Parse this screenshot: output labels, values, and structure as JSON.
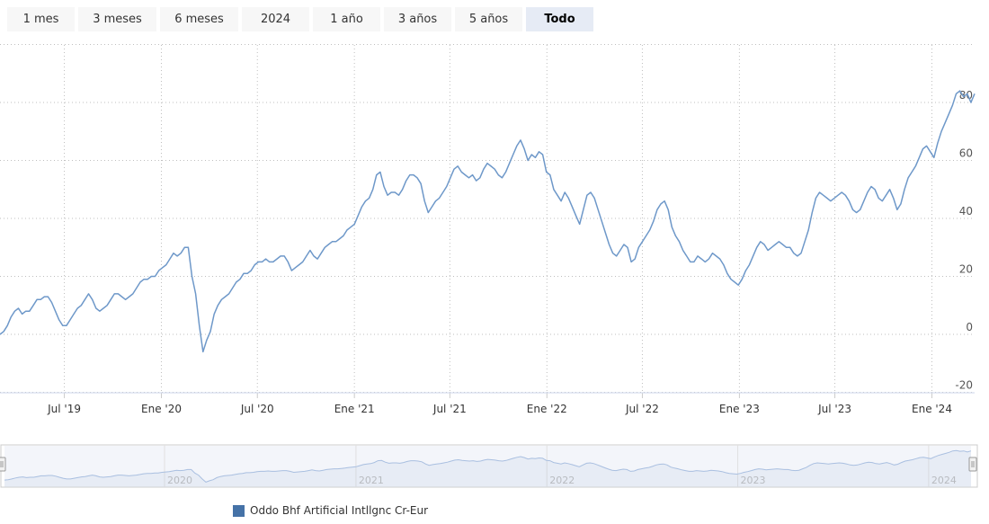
{
  "range_selector": {
    "buttons": [
      "1 mes",
      "3 meses",
      "6 meses",
      "2024",
      "1 año",
      "3 años",
      "5 años",
      "Todo"
    ],
    "active": "Todo"
  },
  "colors": {
    "series": "#6e98c9",
    "navigator_line": "#a9bfe0",
    "legend": "#4572a7",
    "grid": "#bfbfbf"
  },
  "chart_data": {
    "type": "line",
    "title": "",
    "xlabel": "",
    "ylabel": "",
    "y_ticks": [
      -20,
      0,
      20,
      40,
      60,
      80
    ],
    "ylim": [
      -20,
      100
    ],
    "xlim": [
      "2019-03-01",
      "2024-03-22"
    ],
    "x_ticks": [
      {
        "date": "2019-07-01",
        "label": "Jul '19"
      },
      {
        "date": "2020-01-01",
        "label": "Ene '20"
      },
      {
        "date": "2020-07-01",
        "label": "Jul '20"
      },
      {
        "date": "2021-01-01",
        "label": "Ene '21"
      },
      {
        "date": "2021-07-01",
        "label": "Jul '21"
      },
      {
        "date": "2022-01-01",
        "label": "Ene '22"
      },
      {
        "date": "2022-07-01",
        "label": "Jul '22"
      },
      {
        "date": "2023-01-01",
        "label": "Ene '23"
      },
      {
        "date": "2023-07-01",
        "label": "Jul '23"
      },
      {
        "date": "2024-01-01",
        "label": "Ene '24"
      }
    ],
    "grid": true,
    "legend_position": "bottom",
    "series": [
      {
        "name": "Oddo Bhf Artificial Intllgnc Cr-Eur",
        "points": [
          [
            "2019-03-01",
            0
          ],
          [
            "2019-03-08",
            1
          ],
          [
            "2019-03-15",
            3
          ],
          [
            "2019-03-22",
            6
          ],
          [
            "2019-03-29",
            8
          ],
          [
            "2019-04-05",
            9
          ],
          [
            "2019-04-12",
            7
          ],
          [
            "2019-04-19",
            8
          ],
          [
            "2019-04-26",
            8
          ],
          [
            "2019-05-03",
            10
          ],
          [
            "2019-05-10",
            12
          ],
          [
            "2019-05-17",
            12
          ],
          [
            "2019-05-24",
            13
          ],
          [
            "2019-05-31",
            13
          ],
          [
            "2019-06-07",
            11
          ],
          [
            "2019-06-14",
            8
          ],
          [
            "2019-06-21",
            5
          ],
          [
            "2019-06-28",
            3
          ],
          [
            "2019-07-05",
            3
          ],
          [
            "2019-07-12",
            5
          ],
          [
            "2019-07-19",
            7
          ],
          [
            "2019-07-26",
            9
          ],
          [
            "2019-08-02",
            10
          ],
          [
            "2019-08-09",
            12
          ],
          [
            "2019-08-16",
            14
          ],
          [
            "2019-08-23",
            12
          ],
          [
            "2019-08-30",
            9
          ],
          [
            "2019-09-06",
            8
          ],
          [
            "2019-09-13",
            9
          ],
          [
            "2019-09-20",
            10
          ],
          [
            "2019-09-27",
            12
          ],
          [
            "2019-10-04",
            14
          ],
          [
            "2019-10-11",
            14
          ],
          [
            "2019-10-18",
            13
          ],
          [
            "2019-10-25",
            12
          ],
          [
            "2019-11-01",
            13
          ],
          [
            "2019-11-08",
            14
          ],
          [
            "2019-11-15",
            16
          ],
          [
            "2019-11-22",
            18
          ],
          [
            "2019-11-29",
            19
          ],
          [
            "2019-12-06",
            19
          ],
          [
            "2019-12-13",
            20
          ],
          [
            "2019-12-20",
            20
          ],
          [
            "2019-12-27",
            22
          ],
          [
            "2020-01-03",
            23
          ],
          [
            "2020-01-10",
            24
          ],
          [
            "2020-01-17",
            26
          ],
          [
            "2020-01-24",
            28
          ],
          [
            "2020-01-31",
            27
          ],
          [
            "2020-02-07",
            28
          ],
          [
            "2020-02-14",
            30
          ],
          [
            "2020-02-21",
            30
          ],
          [
            "2020-02-28",
            20
          ],
          [
            "2020-03-06",
            14
          ],
          [
            "2020-03-13",
            3
          ],
          [
            "2020-03-20",
            -6
          ],
          [
            "2020-03-27",
            -2
          ],
          [
            "2020-04-03",
            1
          ],
          [
            "2020-04-10",
            7
          ],
          [
            "2020-04-17",
            10
          ],
          [
            "2020-04-24",
            12
          ],
          [
            "2020-05-01",
            13
          ],
          [
            "2020-05-08",
            14
          ],
          [
            "2020-05-15",
            16
          ],
          [
            "2020-05-22",
            18
          ],
          [
            "2020-05-29",
            19
          ],
          [
            "2020-06-05",
            21
          ],
          [
            "2020-06-12",
            21
          ],
          [
            "2020-06-19",
            22
          ],
          [
            "2020-06-26",
            24
          ],
          [
            "2020-07-03",
            25
          ],
          [
            "2020-07-10",
            25
          ],
          [
            "2020-07-17",
            26
          ],
          [
            "2020-07-24",
            25
          ],
          [
            "2020-07-31",
            25
          ],
          [
            "2020-08-07",
            26
          ],
          [
            "2020-08-14",
            27
          ],
          [
            "2020-08-21",
            27
          ],
          [
            "2020-08-28",
            25
          ],
          [
            "2020-09-04",
            22
          ],
          [
            "2020-09-11",
            23
          ],
          [
            "2020-09-18",
            24
          ],
          [
            "2020-09-25",
            25
          ],
          [
            "2020-10-02",
            27
          ],
          [
            "2020-10-09",
            29
          ],
          [
            "2020-10-16",
            27
          ],
          [
            "2020-10-23",
            26
          ],
          [
            "2020-10-30",
            28
          ],
          [
            "2020-11-06",
            30
          ],
          [
            "2020-11-13",
            31
          ],
          [
            "2020-11-20",
            32
          ],
          [
            "2020-11-27",
            32
          ],
          [
            "2020-12-04",
            33
          ],
          [
            "2020-12-11",
            34
          ],
          [
            "2020-12-18",
            36
          ],
          [
            "2020-12-25",
            37
          ],
          [
            "2021-01-01",
            38
          ],
          [
            "2021-01-08",
            41
          ],
          [
            "2021-01-15",
            44
          ],
          [
            "2021-01-22",
            46
          ],
          [
            "2021-01-29",
            47
          ],
          [
            "2021-02-05",
            50
          ],
          [
            "2021-02-12",
            55
          ],
          [
            "2021-02-19",
            56
          ],
          [
            "2021-02-26",
            51
          ],
          [
            "2021-03-05",
            48
          ],
          [
            "2021-03-12",
            49
          ],
          [
            "2021-03-19",
            49
          ],
          [
            "2021-03-26",
            48
          ],
          [
            "2021-04-02",
            50
          ],
          [
            "2021-04-09",
            53
          ],
          [
            "2021-04-16",
            55
          ],
          [
            "2021-04-23",
            55
          ],
          [
            "2021-04-30",
            54
          ],
          [
            "2021-05-07",
            52
          ],
          [
            "2021-05-14",
            46
          ],
          [
            "2021-05-21",
            42
          ],
          [
            "2021-05-28",
            44
          ],
          [
            "2021-06-04",
            46
          ],
          [
            "2021-06-11",
            47
          ],
          [
            "2021-06-18",
            49
          ],
          [
            "2021-06-25",
            51
          ],
          [
            "2021-07-02",
            54
          ],
          [
            "2021-07-09",
            57
          ],
          [
            "2021-07-16",
            58
          ],
          [
            "2021-07-23",
            56
          ],
          [
            "2021-07-30",
            55
          ],
          [
            "2021-08-06",
            54
          ],
          [
            "2021-08-13",
            55
          ],
          [
            "2021-08-20",
            53
          ],
          [
            "2021-08-27",
            54
          ],
          [
            "2021-09-03",
            57
          ],
          [
            "2021-09-10",
            59
          ],
          [
            "2021-09-17",
            58
          ],
          [
            "2021-09-24",
            57
          ],
          [
            "2021-10-01",
            55
          ],
          [
            "2021-10-08",
            54
          ],
          [
            "2021-10-15",
            56
          ],
          [
            "2021-10-22",
            59
          ],
          [
            "2021-10-29",
            62
          ],
          [
            "2021-11-05",
            65
          ],
          [
            "2021-11-12",
            67
          ],
          [
            "2021-11-19",
            64
          ],
          [
            "2021-11-26",
            60
          ],
          [
            "2021-12-03",
            62
          ],
          [
            "2021-12-10",
            61
          ],
          [
            "2021-12-17",
            63
          ],
          [
            "2021-12-24",
            62
          ],
          [
            "2021-12-31",
            56
          ],
          [
            "2022-01-07",
            55
          ],
          [
            "2022-01-14",
            50
          ],
          [
            "2022-01-21",
            48
          ],
          [
            "2022-01-28",
            46
          ],
          [
            "2022-02-04",
            49
          ],
          [
            "2022-02-11",
            47
          ],
          [
            "2022-02-18",
            44
          ],
          [
            "2022-02-25",
            41
          ],
          [
            "2022-03-04",
            38
          ],
          [
            "2022-03-11",
            43
          ],
          [
            "2022-03-18",
            48
          ],
          [
            "2022-03-25",
            49
          ],
          [
            "2022-04-01",
            47
          ],
          [
            "2022-04-08",
            43
          ],
          [
            "2022-04-15",
            39
          ],
          [
            "2022-04-22",
            35
          ],
          [
            "2022-04-29",
            31
          ],
          [
            "2022-05-06",
            28
          ],
          [
            "2022-05-13",
            27
          ],
          [
            "2022-05-20",
            29
          ],
          [
            "2022-05-27",
            31
          ],
          [
            "2022-06-03",
            30
          ],
          [
            "2022-06-10",
            25
          ],
          [
            "2022-06-17",
            26
          ],
          [
            "2022-06-24",
            30
          ],
          [
            "2022-07-01",
            32
          ],
          [
            "2022-07-08",
            34
          ],
          [
            "2022-07-15",
            36
          ],
          [
            "2022-07-22",
            39
          ],
          [
            "2022-07-29",
            43
          ],
          [
            "2022-08-05",
            45
          ],
          [
            "2022-08-12",
            46
          ],
          [
            "2022-08-19",
            43
          ],
          [
            "2022-08-26",
            37
          ],
          [
            "2022-09-02",
            34
          ],
          [
            "2022-09-09",
            32
          ],
          [
            "2022-09-16",
            29
          ],
          [
            "2022-09-23",
            27
          ],
          [
            "2022-09-30",
            25
          ],
          [
            "2022-10-07",
            25
          ],
          [
            "2022-10-14",
            27
          ],
          [
            "2022-10-21",
            26
          ],
          [
            "2022-10-28",
            25
          ],
          [
            "2022-11-04",
            26
          ],
          [
            "2022-11-11",
            28
          ],
          [
            "2022-11-18",
            27
          ],
          [
            "2022-11-25",
            26
          ],
          [
            "2022-12-02",
            24
          ],
          [
            "2022-12-09",
            21
          ],
          [
            "2022-12-16",
            19
          ],
          [
            "2022-12-23",
            18
          ],
          [
            "2022-12-30",
            17
          ],
          [
            "2023-01-06",
            19
          ],
          [
            "2023-01-13",
            22
          ],
          [
            "2023-01-20",
            24
          ],
          [
            "2023-01-27",
            27
          ],
          [
            "2023-02-03",
            30
          ],
          [
            "2023-02-10",
            32
          ],
          [
            "2023-02-17",
            31
          ],
          [
            "2023-02-24",
            29
          ],
          [
            "2023-03-03",
            30
          ],
          [
            "2023-03-10",
            31
          ],
          [
            "2023-03-17",
            32
          ],
          [
            "2023-03-24",
            31
          ],
          [
            "2023-03-31",
            30
          ],
          [
            "2023-04-07",
            30
          ],
          [
            "2023-04-14",
            28
          ],
          [
            "2023-04-21",
            27
          ],
          [
            "2023-04-28",
            28
          ],
          [
            "2023-05-05",
            32
          ],
          [
            "2023-05-12",
            36
          ],
          [
            "2023-05-19",
            42
          ],
          [
            "2023-05-26",
            47
          ],
          [
            "2023-06-02",
            49
          ],
          [
            "2023-06-09",
            48
          ],
          [
            "2023-06-16",
            47
          ],
          [
            "2023-06-23",
            46
          ],
          [
            "2023-06-30",
            47
          ],
          [
            "2023-07-07",
            48
          ],
          [
            "2023-07-14",
            49
          ],
          [
            "2023-07-21",
            48
          ],
          [
            "2023-07-28",
            46
          ],
          [
            "2023-08-04",
            43
          ],
          [
            "2023-08-11",
            42
          ],
          [
            "2023-08-18",
            43
          ],
          [
            "2023-08-25",
            46
          ],
          [
            "2023-09-01",
            49
          ],
          [
            "2023-09-08",
            51
          ],
          [
            "2023-09-15",
            50
          ],
          [
            "2023-09-22",
            47
          ],
          [
            "2023-09-29",
            46
          ],
          [
            "2023-10-06",
            48
          ],
          [
            "2023-10-13",
            50
          ],
          [
            "2023-10-20",
            47
          ],
          [
            "2023-10-27",
            43
          ],
          [
            "2023-11-03",
            45
          ],
          [
            "2023-11-10",
            50
          ],
          [
            "2023-11-17",
            54
          ],
          [
            "2023-11-24",
            56
          ],
          [
            "2023-12-01",
            58
          ],
          [
            "2023-12-08",
            61
          ],
          [
            "2023-12-15",
            64
          ],
          [
            "2023-12-22",
            65
          ],
          [
            "2023-12-29",
            63
          ],
          [
            "2024-01-05",
            61
          ],
          [
            "2024-01-12",
            66
          ],
          [
            "2024-01-19",
            70
          ],
          [
            "2024-01-26",
            73
          ],
          [
            "2024-02-02",
            76
          ],
          [
            "2024-02-09",
            79
          ],
          [
            "2024-02-16",
            83
          ],
          [
            "2024-02-23",
            84
          ],
          [
            "2024-03-01",
            82
          ],
          [
            "2024-03-08",
            83
          ],
          [
            "2024-03-15",
            80
          ],
          [
            "2024-03-22",
            83
          ]
        ]
      }
    ],
    "navigator": {
      "year_labels": [
        "2020",
        "2021",
        "2022",
        "2023",
        "2024"
      ],
      "year_dates": [
        "2020-01-01",
        "2021-01-01",
        "2022-01-01",
        "2023-01-01",
        "2024-01-01"
      ]
    }
  },
  "legend": {
    "label": "Oddo Bhf Artificial Intllgnc Cr-Eur"
  }
}
